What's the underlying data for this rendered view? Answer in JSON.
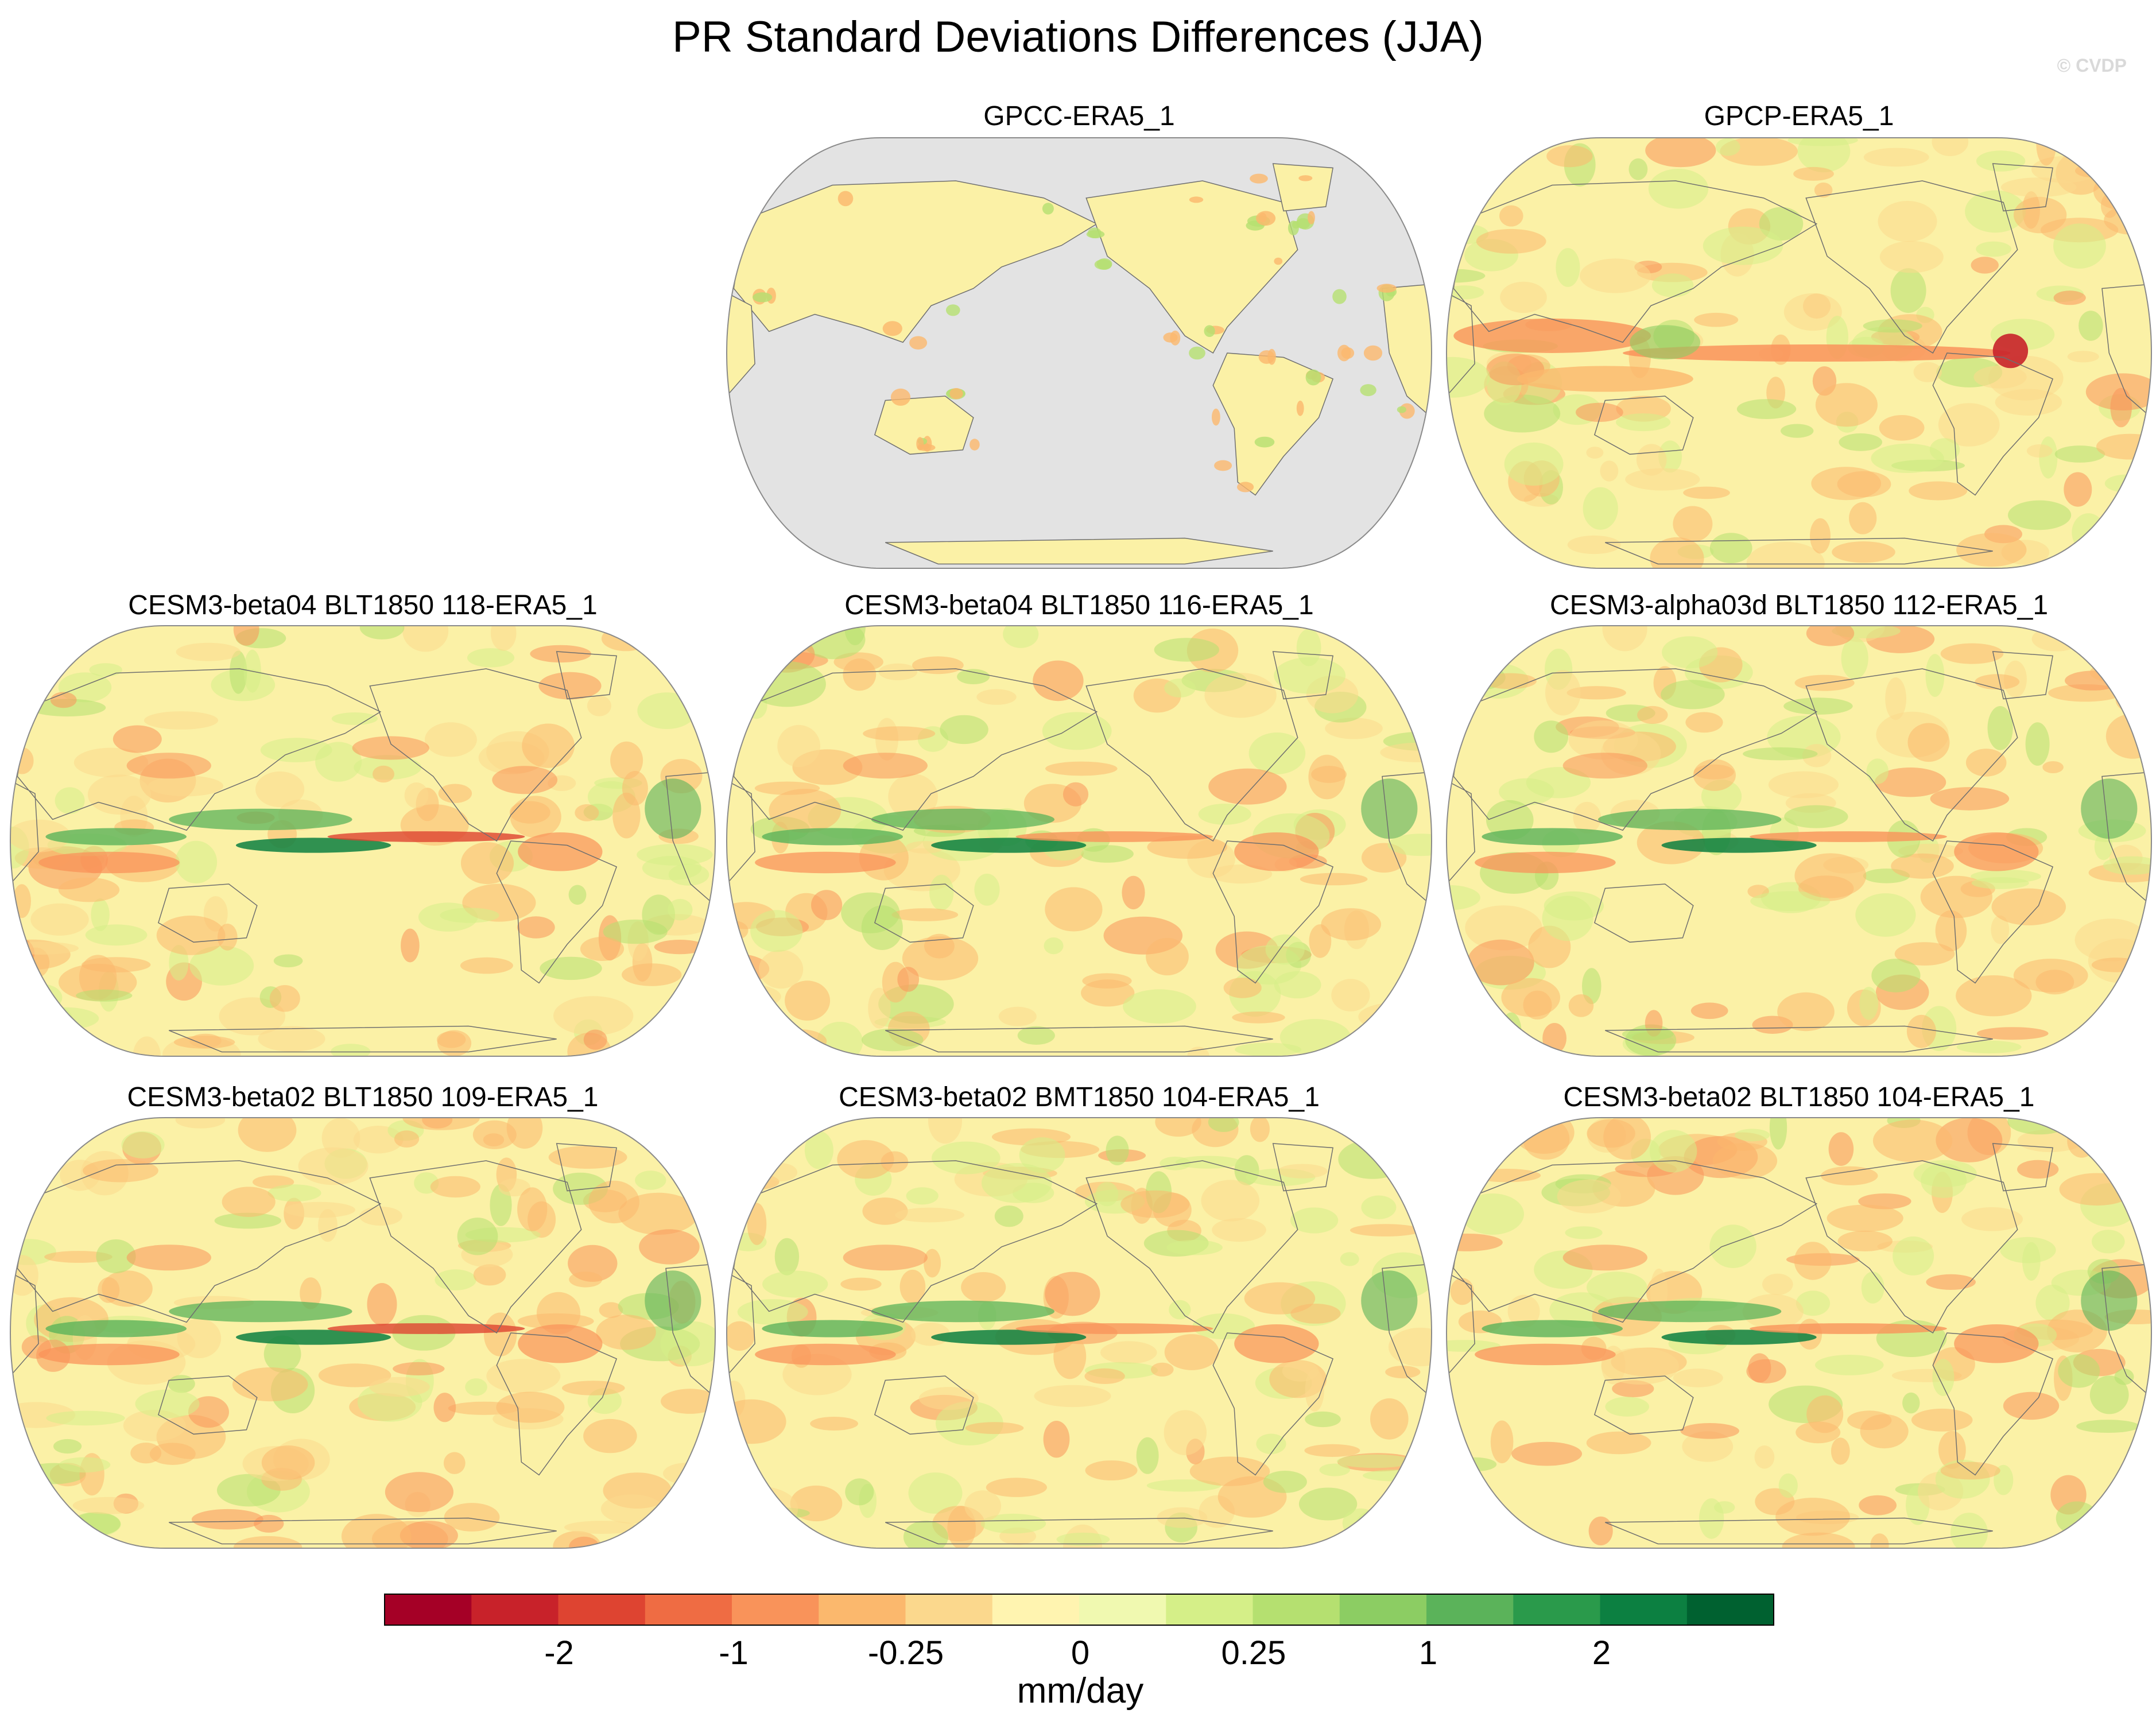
{
  "figure": {
    "title": "PR Standard Deviations Differences (JJA)",
    "watermark": "© CVDP"
  },
  "panels": [
    {
      "title": "GPCC-ERA5_1",
      "ocean_masked": true
    },
    {
      "title": "GPCP-ERA5_1",
      "ocean_masked": false
    },
    {
      "title": "CESM3-beta04 BLT1850 118-ERA5_1",
      "ocean_masked": false
    },
    {
      "title": "CESM3-beta04 BLT1850 116-ERA5_1",
      "ocean_masked": false
    },
    {
      "title": "CESM3-alpha03d BLT1850 112-ERA5_1",
      "ocean_masked": false
    },
    {
      "title": "CESM3-beta02 BLT1850 109-ERA5_1",
      "ocean_masked": false
    },
    {
      "title": "CESM3-beta02 BMT1850 104-ERA5_1",
      "ocean_masked": false
    },
    {
      "title": "CESM3-beta02 BLT1850 104-ERA5_1",
      "ocean_masked": false
    }
  ],
  "colorbar": {
    "colors": [
      "#a50026",
      "#c8222a",
      "#de4431",
      "#ef6c43",
      "#f9935a",
      "#fbb86d",
      "#fbd88d",
      "#fff4b0",
      "#f0f9b0",
      "#d5ef88",
      "#b5e070",
      "#8ccd63",
      "#5bb35a",
      "#2a9a4b",
      "#0c8041",
      "#006130"
    ],
    "tick_labels": [
      "-2",
      "-1",
      "-0.25",
      "0",
      "0.25",
      "1",
      "2"
    ],
    "units": "mm/day"
  },
  "map_colors": {
    "land_mask": "#e3e3e3",
    "coast": "#6f6f6f",
    "neutral": "#fbf1a6"
  }
}
